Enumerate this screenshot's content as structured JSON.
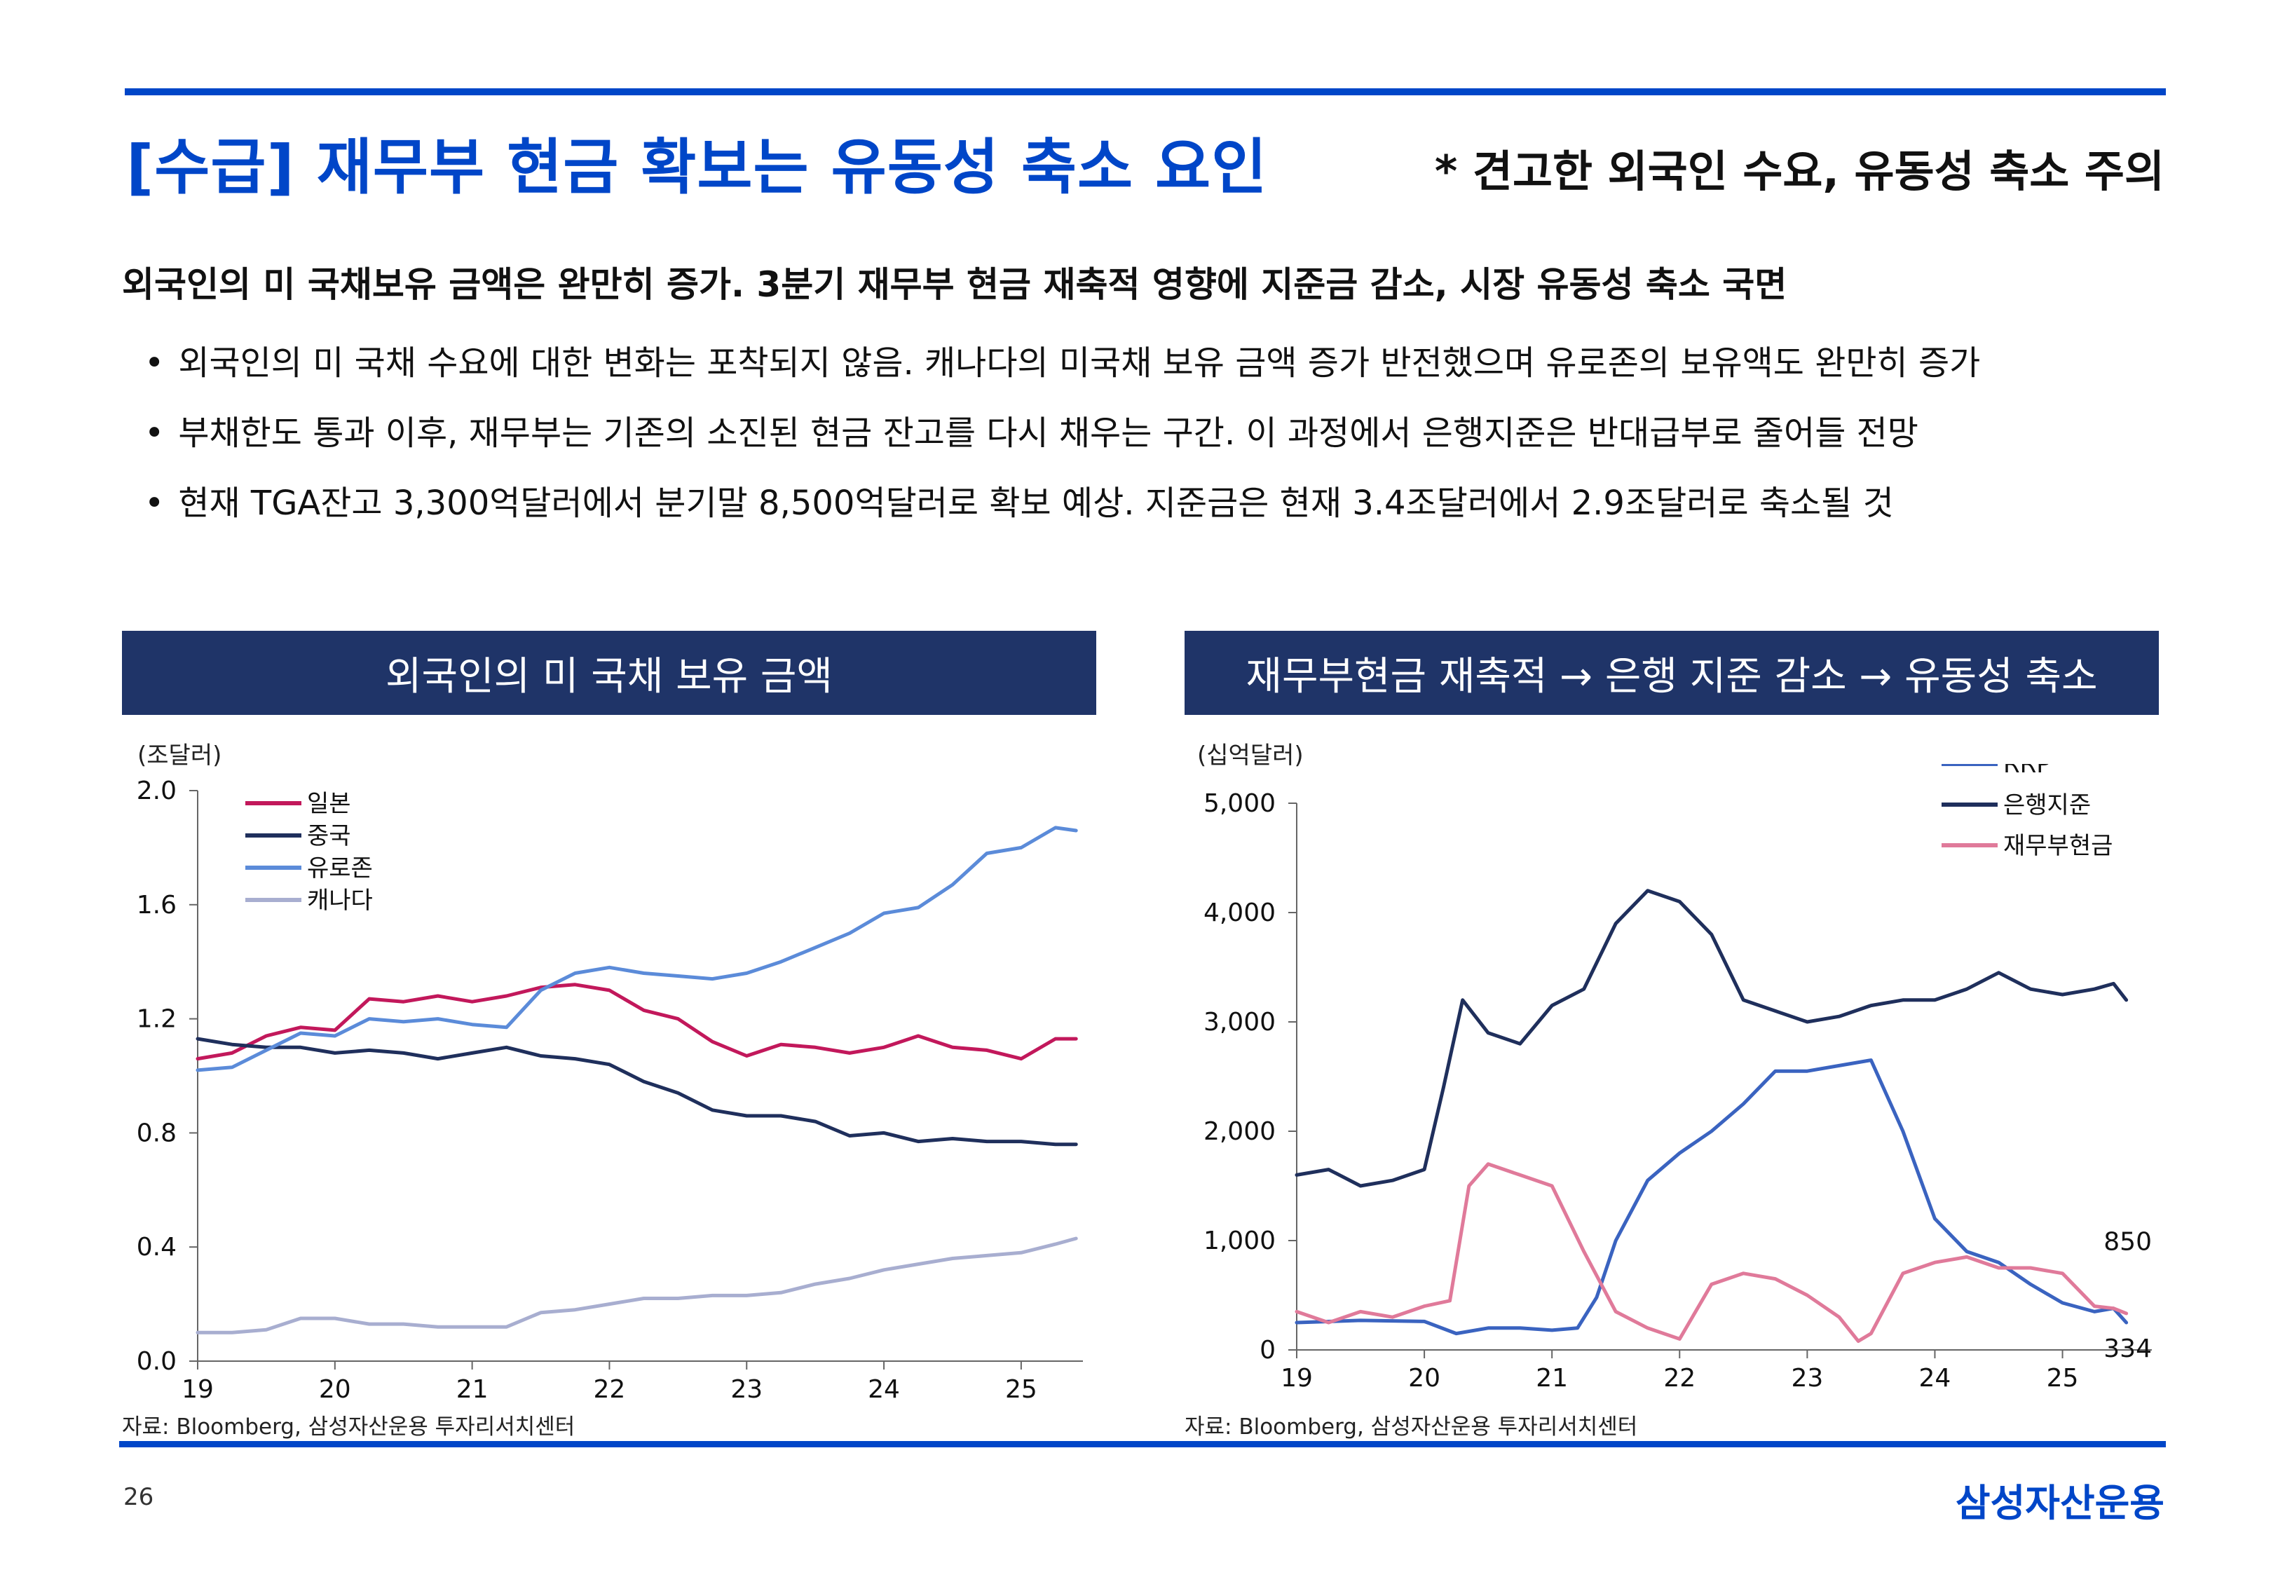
{
  "header": {
    "title": "[수급] 재무부 현금 확보는 유동성 축소 요인",
    "note": "* 견고한 외국인 수요, 유동성 축소 주의"
  },
  "summary": {
    "headline": "외국인의 미 국채보유 금액은 완만히 증가. 3분기 재무부 현금 재축적 영향에 지준금 감소, 시장 유동성 축소 국면",
    "bullets": [
      "외국인의 미 국채 수요에 대한 변화는 포착되지 않음. 캐나다의 미국채 보유 금액 증가 반전했으며 유로존의 보유액도 완만히 증가",
      "부채한도 통과 이후, 재무부는 기존의 소진된 현금 잔고를 다시 채우는 구간. 이 과정에서 은행지준은 반대급부로 줄어들 전망",
      "현재 TGA잔고 3,300억달러에서 분기말 8,500억달러로 확보 예상. 지준금은 현재 3.4조달러에서 2.9조달러로 축소될 것"
    ]
  },
  "left_panel": {
    "title": "외국인의 미 국채 보유 금액",
    "unit": "(조달러)",
    "source": "자료: Bloomberg, 삼성자산운용 투자리서치센터"
  },
  "right_panel": {
    "title": "재무부현금 재축적 → 은행 지준 감소 → 유동성 축소",
    "unit": "(십억달러)",
    "source": "자료: Bloomberg, 삼성자산운용 투자리서치센터"
  },
  "footer": {
    "page_number": "26",
    "brand": "삼성자산운용"
  },
  "chart_data": [
    {
      "type": "line",
      "ylim": [
        0.0,
        2.0
      ],
      "xlim": [
        2019.0,
        2025.45
      ],
      "yticks": [
        "0.0",
        "0.4",
        "0.8",
        "1.2",
        "1.6",
        "2.0"
      ],
      "xtick_labels": [
        "19",
        "20",
        "21",
        "22",
        "23",
        "24",
        "25"
      ],
      "legend_position": "top-left",
      "grid": false,
      "series": [
        {
          "name": "일본",
          "color": "#c2185b",
          "x": [
            2019.0,
            2019.25,
            2019.5,
            2019.75,
            2020.0,
            2020.25,
            2020.5,
            2020.75,
            2021.0,
            2021.25,
            2021.5,
            2021.75,
            2022.0,
            2022.25,
            2022.5,
            2022.75,
            2023.0,
            2023.25,
            2023.5,
            2023.75,
            2024.0,
            2024.25,
            2024.5,
            2024.75,
            2025.0,
            2025.25,
            2025.4
          ],
          "y": [
            1.06,
            1.08,
            1.14,
            1.17,
            1.16,
            1.27,
            1.26,
            1.28,
            1.26,
            1.28,
            1.31,
            1.32,
            1.3,
            1.23,
            1.2,
            1.12,
            1.07,
            1.11,
            1.1,
            1.08,
            1.1,
            1.14,
            1.1,
            1.09,
            1.06,
            1.13,
            1.13
          ]
        },
        {
          "name": "중국",
          "color": "#1f2f5c",
          "x": [
            2019.0,
            2019.25,
            2019.5,
            2019.75,
            2020.0,
            2020.25,
            2020.5,
            2020.75,
            2021.0,
            2021.25,
            2021.5,
            2021.75,
            2022.0,
            2022.25,
            2022.5,
            2022.75,
            2023.0,
            2023.25,
            2023.5,
            2023.75,
            2024.0,
            2024.25,
            2024.5,
            2024.75,
            2025.0,
            2025.25,
            2025.4
          ],
          "y": [
            1.13,
            1.11,
            1.1,
            1.1,
            1.08,
            1.09,
            1.08,
            1.06,
            1.08,
            1.1,
            1.07,
            1.06,
            1.04,
            0.98,
            0.94,
            0.88,
            0.86,
            0.86,
            0.84,
            0.79,
            0.8,
            0.77,
            0.78,
            0.77,
            0.77,
            0.76,
            0.76
          ]
        },
        {
          "name": "유로존",
          "color": "#5b8bd9",
          "x": [
            2019.0,
            2019.25,
            2019.5,
            2019.75,
            2020.0,
            2020.25,
            2020.5,
            2020.75,
            2021.0,
            2021.25,
            2021.5,
            2021.75,
            2022.0,
            2022.25,
            2022.5,
            2022.75,
            2023.0,
            2023.25,
            2023.5,
            2023.75,
            2024.0,
            2024.25,
            2024.5,
            2024.75,
            2025.0,
            2025.25,
            2025.4
          ],
          "y": [
            1.02,
            1.03,
            1.09,
            1.15,
            1.14,
            1.2,
            1.19,
            1.2,
            1.18,
            1.17,
            1.3,
            1.36,
            1.38,
            1.36,
            1.35,
            1.34,
            1.36,
            1.4,
            1.45,
            1.5,
            1.57,
            1.59,
            1.67,
            1.78,
            1.8,
            1.87,
            1.86
          ]
        },
        {
          "name": "캐나다",
          "color": "#a8aed0",
          "x": [
            2019.0,
            2019.25,
            2019.5,
            2019.75,
            2020.0,
            2020.25,
            2020.5,
            2020.75,
            2021.0,
            2021.25,
            2021.5,
            2021.75,
            2022.0,
            2022.25,
            2022.5,
            2022.75,
            2023.0,
            2023.25,
            2023.5,
            2023.75,
            2024.0,
            2024.25,
            2024.5,
            2024.75,
            2025.0,
            2025.25,
            2025.4
          ],
          "y": [
            0.1,
            0.1,
            0.11,
            0.15,
            0.15,
            0.13,
            0.13,
            0.12,
            0.12,
            0.12,
            0.17,
            0.18,
            0.2,
            0.22,
            0.22,
            0.23,
            0.23,
            0.24,
            0.27,
            0.29,
            0.32,
            0.34,
            0.36,
            0.37,
            0.38,
            0.41,
            0.43
          ]
        }
      ]
    },
    {
      "type": "line",
      "ylim": [
        0,
        5000
      ],
      "xlim": [
        2019.0,
        2025.7
      ],
      "yticks": [
        "0",
        "1,000",
        "2,000",
        "3,000",
        "4,000",
        "5,000"
      ],
      "xtick_labels": [
        "19",
        "20",
        "21",
        "22",
        "23",
        "24",
        "25"
      ],
      "legend_position": "top-right",
      "grid": false,
      "end_labels": [
        "850",
        "334"
      ],
      "series": [
        {
          "name": "RRP",
          "color": "#3a63c0",
          "x": [
            2019.0,
            2019.5,
            2020.0,
            2020.25,
            2020.5,
            2020.75,
            2021.0,
            2021.2,
            2021.35,
            2021.5,
            2021.75,
            2022.0,
            2022.25,
            2022.5,
            2022.75,
            2023.0,
            2023.25,
            2023.5,
            2023.75,
            2024.0,
            2024.25,
            2024.5,
            2024.75,
            2025.0,
            2025.25,
            2025.4,
            2025.5
          ],
          "y": [
            250,
            270,
            260,
            150,
            200,
            200,
            180,
            200,
            480,
            1000,
            1550,
            1800,
            2000,
            2250,
            2550,
            2550,
            2600,
            2650,
            2000,
            1200,
            900,
            800,
            600,
            430,
            350,
            380,
            250
          ]
        },
        {
          "name": "은행지준",
          "color": "#1f2f5c",
          "x": [
            2019.0,
            2019.25,
            2019.5,
            2019.75,
            2020.0,
            2020.15,
            2020.3,
            2020.5,
            2020.75,
            2021.0,
            2021.25,
            2021.5,
            2021.75,
            2022.0,
            2022.25,
            2022.5,
            2022.75,
            2023.0,
            2023.25,
            2023.5,
            2023.75,
            2024.0,
            2024.25,
            2024.5,
            2024.75,
            2025.0,
            2025.25,
            2025.4,
            2025.5
          ],
          "y": [
            1600,
            1650,
            1500,
            1550,
            1650,
            2400,
            3200,
            2900,
            2800,
            3150,
            3300,
            3900,
            4200,
            4100,
            3800,
            3200,
            3100,
            3000,
            3050,
            3150,
            3200,
            3200,
            3300,
            3450,
            3300,
            3250,
            3300,
            3350,
            3200
          ]
        },
        {
          "name": "재무부현금",
          "color": "#e07a9a",
          "x": [
            2019.0,
            2019.25,
            2019.5,
            2019.75,
            2020.0,
            2020.2,
            2020.35,
            2020.5,
            2020.75,
            2021.0,
            2021.25,
            2021.5,
            2021.75,
            2022.0,
            2022.25,
            2022.5,
            2022.75,
            2023.0,
            2023.25,
            2023.4,
            2023.5,
            2023.75,
            2024.0,
            2024.25,
            2024.5,
            2024.75,
            2025.0,
            2025.25,
            2025.4,
            2025.5
          ],
          "y": [
            350,
            250,
            350,
            300,
            400,
            450,
            1500,
            1700,
            1600,
            1500,
            900,
            350,
            200,
            100,
            600,
            700,
            650,
            500,
            300,
            80,
            150,
            700,
            800,
            850,
            750,
            750,
            700,
            400,
            380,
            334
          ]
        }
      ]
    }
  ]
}
